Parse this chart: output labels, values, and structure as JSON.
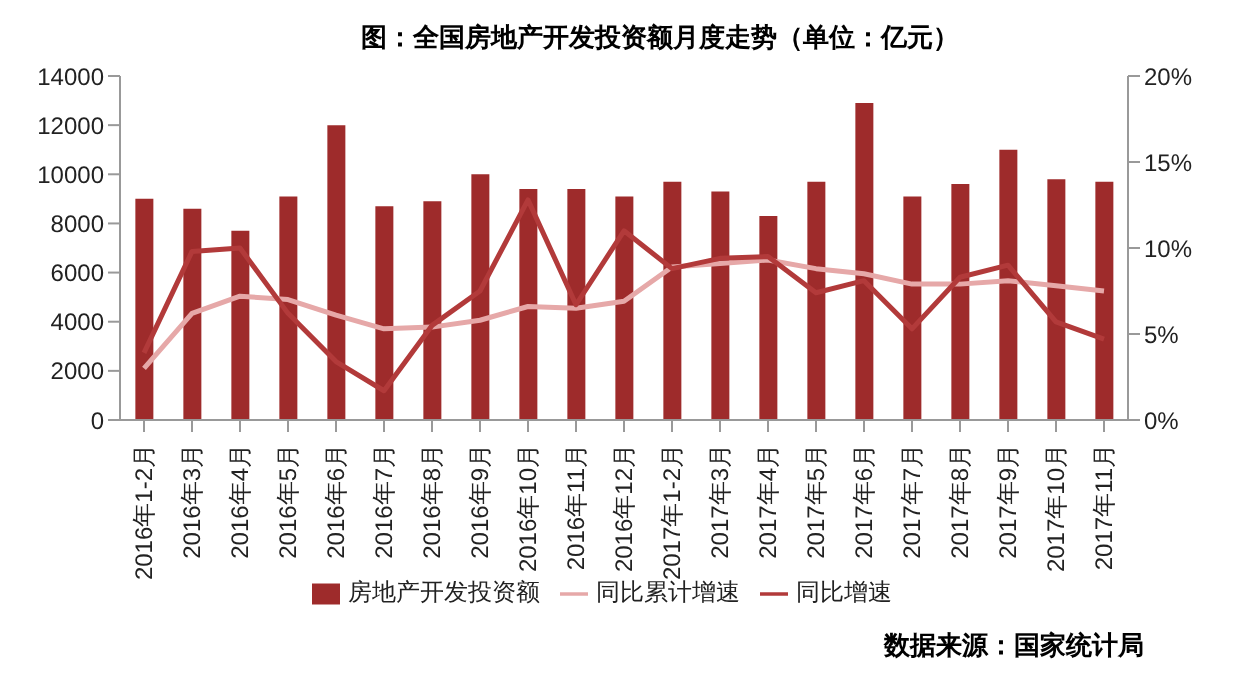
{
  "chart_data": {
    "type": "bar",
    "title": "图：全国房地产开发投资额月度走势（单位：亿元）",
    "categories": [
      "2016年1-2月",
      "2016年3月",
      "2016年4月",
      "2016年5月",
      "2016年6月",
      "2016年7月",
      "2016年8月",
      "2016年9月",
      "2016年10月",
      "2016年11月",
      "2016年12月",
      "2017年1-2月",
      "2017年3月",
      "2017年4月",
      "2017年5月",
      "2017年6月",
      "2017年7月",
      "2017年8月",
      "2017年9月",
      "2017年10月",
      "2017年11月"
    ],
    "series": [
      {
        "name": "房地产开发投资额",
        "color": "#9e2b2b",
        "values": [
          9000,
          8600,
          7700,
          9100,
          12000,
          8700,
          8900,
          10000,
          9400,
          9400,
          9100,
          9700,
          9300,
          8300,
          9700,
          12900,
          9100,
          9600,
          11000,
          9800,
          9700
        ]
      },
      {
        "name": "同比累计增速",
        "type": "line",
        "axis": "y2",
        "color": "#e6a8a8",
        "values": [
          3.0,
          6.2,
          7.2,
          7.0,
          6.1,
          5.3,
          5.4,
          5.8,
          6.6,
          6.5,
          6.9,
          8.9,
          9.1,
          9.3,
          8.8,
          8.5,
          7.9,
          7.9,
          8.1,
          7.8,
          7.5
        ]
      },
      {
        "name": "同比增速",
        "type": "line",
        "axis": "y2",
        "color": "#b23a3a",
        "values": [
          3.9,
          9.8,
          10.0,
          6.2,
          3.4,
          1.7,
          5.5,
          7.5,
          12.8,
          6.7,
          11.0,
          8.8,
          9.4,
          9.5,
          7.4,
          8.1,
          5.3,
          8.3,
          9.0,
          5.7,
          4.7
        ]
      }
    ],
    "ylim": [
      0,
      14000
    ],
    "yticks": [
      0,
      2000,
      4000,
      6000,
      8000,
      10000,
      12000,
      14000
    ],
    "y2lim": [
      0,
      20
    ],
    "y2ticks": [
      {
        "value": 0,
        "label": "0%"
      },
      {
        "value": 5,
        "label": "5%"
      },
      {
        "value": 10,
        "label": "10%"
      },
      {
        "value": 15,
        "label": "15%"
      },
      {
        "value": 20,
        "label": "20%"
      }
    ],
    "grid": false,
    "legend": "bottom",
    "marker": "none",
    "line_style": "solid",
    "annotations": [
      "数据来源：国家统计局"
    ]
  }
}
